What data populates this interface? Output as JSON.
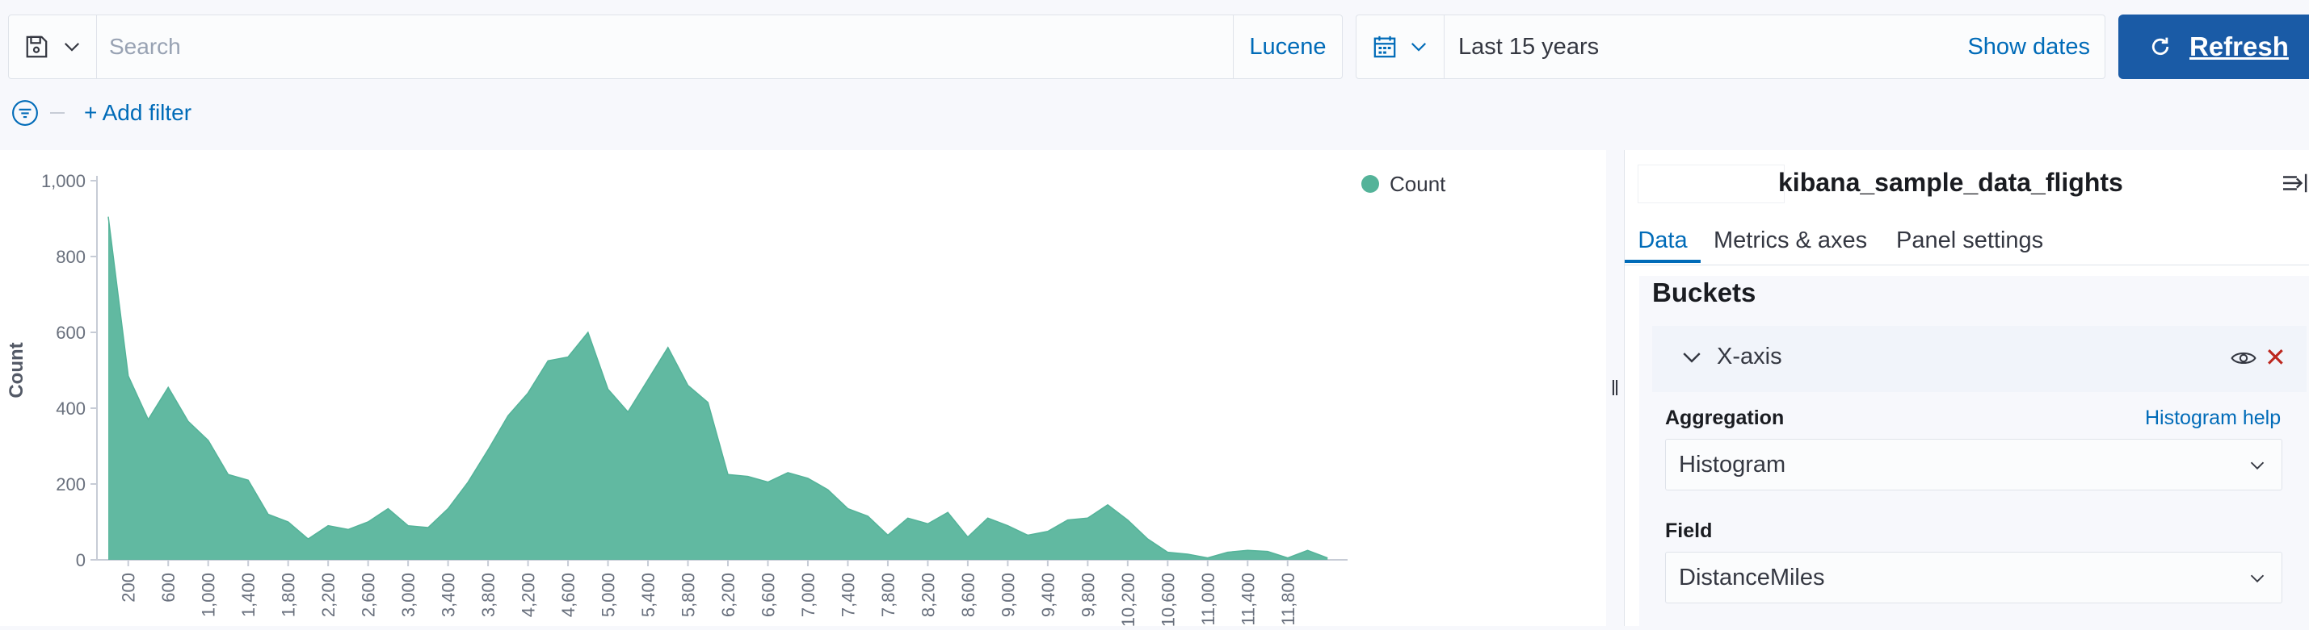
{
  "query_bar": {
    "search_placeholder": "Search",
    "language": "Lucene"
  },
  "date_picker": {
    "range": "Last 15 years",
    "show_dates": "Show dates"
  },
  "refresh": {
    "label": "Refresh"
  },
  "filters": {
    "add_filter": "+ Add filter"
  },
  "sidebar": {
    "index_pattern": "kibana_sample_data_flights",
    "tabs": [
      {
        "label": "Data",
        "active": true
      },
      {
        "label": "Metrics & axes",
        "active": false
      },
      {
        "label": "Panel settings",
        "active": false
      }
    ],
    "buckets": {
      "title": "Buckets",
      "bucket_label": "X-axis",
      "aggregation_label": "Aggregation",
      "aggregation_help": "Histogram help",
      "aggregation_value": "Histogram",
      "field_label": "Field",
      "field_value": "DistanceMiles"
    }
  },
  "colors": {
    "series": "#54b399",
    "accent": "#006bb8",
    "refresh_bg": "#1a5ba6"
  },
  "chart_data": {
    "type": "area",
    "ylabel": "Count",
    "xlabel": "",
    "ylim": [
      0,
      1000
    ],
    "yticks": [
      0,
      200,
      400,
      600,
      800,
      1000
    ],
    "ytick_labels": [
      "0",
      "200",
      "400",
      "600",
      "800",
      "1,000"
    ],
    "xticks": [
      200,
      600,
      1000,
      1400,
      1800,
      2200,
      2600,
      3000,
      3400,
      3800,
      4200,
      4600,
      5000,
      5400,
      5800,
      6200,
      6600,
      7000,
      7400,
      7800,
      8200,
      8600,
      9000,
      9400,
      9800,
      10200,
      10600,
      11000,
      11400,
      11800
    ],
    "xtick_labels": [
      "200",
      "600",
      "1,000",
      "1,400",
      "1,800",
      "2,200",
      "2,600",
      "3,000",
      "3,400",
      "3,800",
      "4,200",
      "4,600",
      "5,000",
      "5,400",
      "5,800",
      "6,200",
      "6,600",
      "7,000",
      "7,400",
      "7,800",
      "8,200",
      "8,600",
      "9,000",
      "9,400",
      "9,800",
      "10,200",
      "10,600",
      "11,000",
      "11,400",
      "11,800"
    ],
    "legend": {
      "position": "top-right"
    },
    "series": [
      {
        "name": "Count",
        "x": [
          0,
          200,
          400,
          600,
          800,
          1000,
          1200,
          1400,
          1600,
          1800,
          2000,
          2200,
          2400,
          2600,
          2800,
          3000,
          3200,
          3400,
          3600,
          3800,
          4000,
          4200,
          4400,
          4600,
          4800,
          5000,
          5200,
          5400,
          5600,
          5800,
          6000,
          6200,
          6400,
          6600,
          6800,
          7000,
          7200,
          7400,
          7600,
          7800,
          8000,
          8200,
          8400,
          8600,
          8800,
          9000,
          9200,
          9400,
          9600,
          9800,
          10000,
          10200,
          10400,
          10600,
          10800,
          11000,
          11200,
          11400,
          11600,
          11800,
          12000,
          12200
        ],
        "values": [
          905,
          485,
          370,
          455,
          365,
          315,
          225,
          210,
          120,
          100,
          55,
          90,
          80,
          100,
          135,
          90,
          85,
          135,
          205,
          290,
          380,
          440,
          525,
          535,
          600,
          450,
          390,
          475,
          560,
          460,
          415,
          225,
          220,
          205,
          230,
          215,
          185,
          135,
          115,
          65,
          110,
          95,
          125,
          60,
          110,
          90,
          65,
          75,
          105,
          110,
          145,
          105,
          55,
          20,
          15,
          5,
          20,
          25,
          22,
          5,
          25,
          5
        ]
      }
    ]
  }
}
